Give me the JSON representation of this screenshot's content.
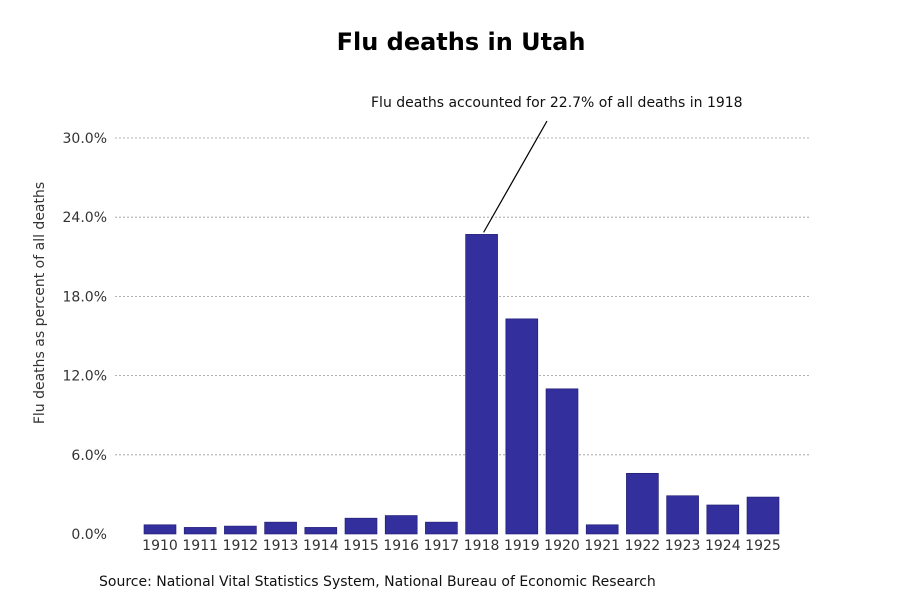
{
  "chart_data": {
    "type": "bar",
    "title": "Flu deaths in Utah",
    "xlabel": "",
    "ylabel": "Flu deaths as percent of all deaths",
    "categories": [
      "1910",
      "1911",
      "1912",
      "1913",
      "1914",
      "1915",
      "1916",
      "1917",
      "1918",
      "1919",
      "1920",
      "1921",
      "1922",
      "1923",
      "1924",
      "1925"
    ],
    "values": [
      0.7,
      0.5,
      0.6,
      0.9,
      0.5,
      1.2,
      1.4,
      0.9,
      22.7,
      16.3,
      11.0,
      0.7,
      4.6,
      2.9,
      2.2,
      2.8
    ],
    "ylim": [
      0,
      30
    ],
    "yticks": [
      0,
      6,
      12,
      18,
      24,
      30
    ],
    "ytick_labels": [
      "0.0%",
      "6.0%",
      "12.0%",
      "18.0%",
      "24.0%",
      "30.0%"
    ],
    "grid": true,
    "legend": "none",
    "bar_color": "#332f9c",
    "annotation": {
      "text": "Flu deaths accounted for 22.7% of all deaths in 1918",
      "target_category": "1918"
    },
    "source": "Source: National Vital Statistics System, National Bureau of Economic Research"
  }
}
